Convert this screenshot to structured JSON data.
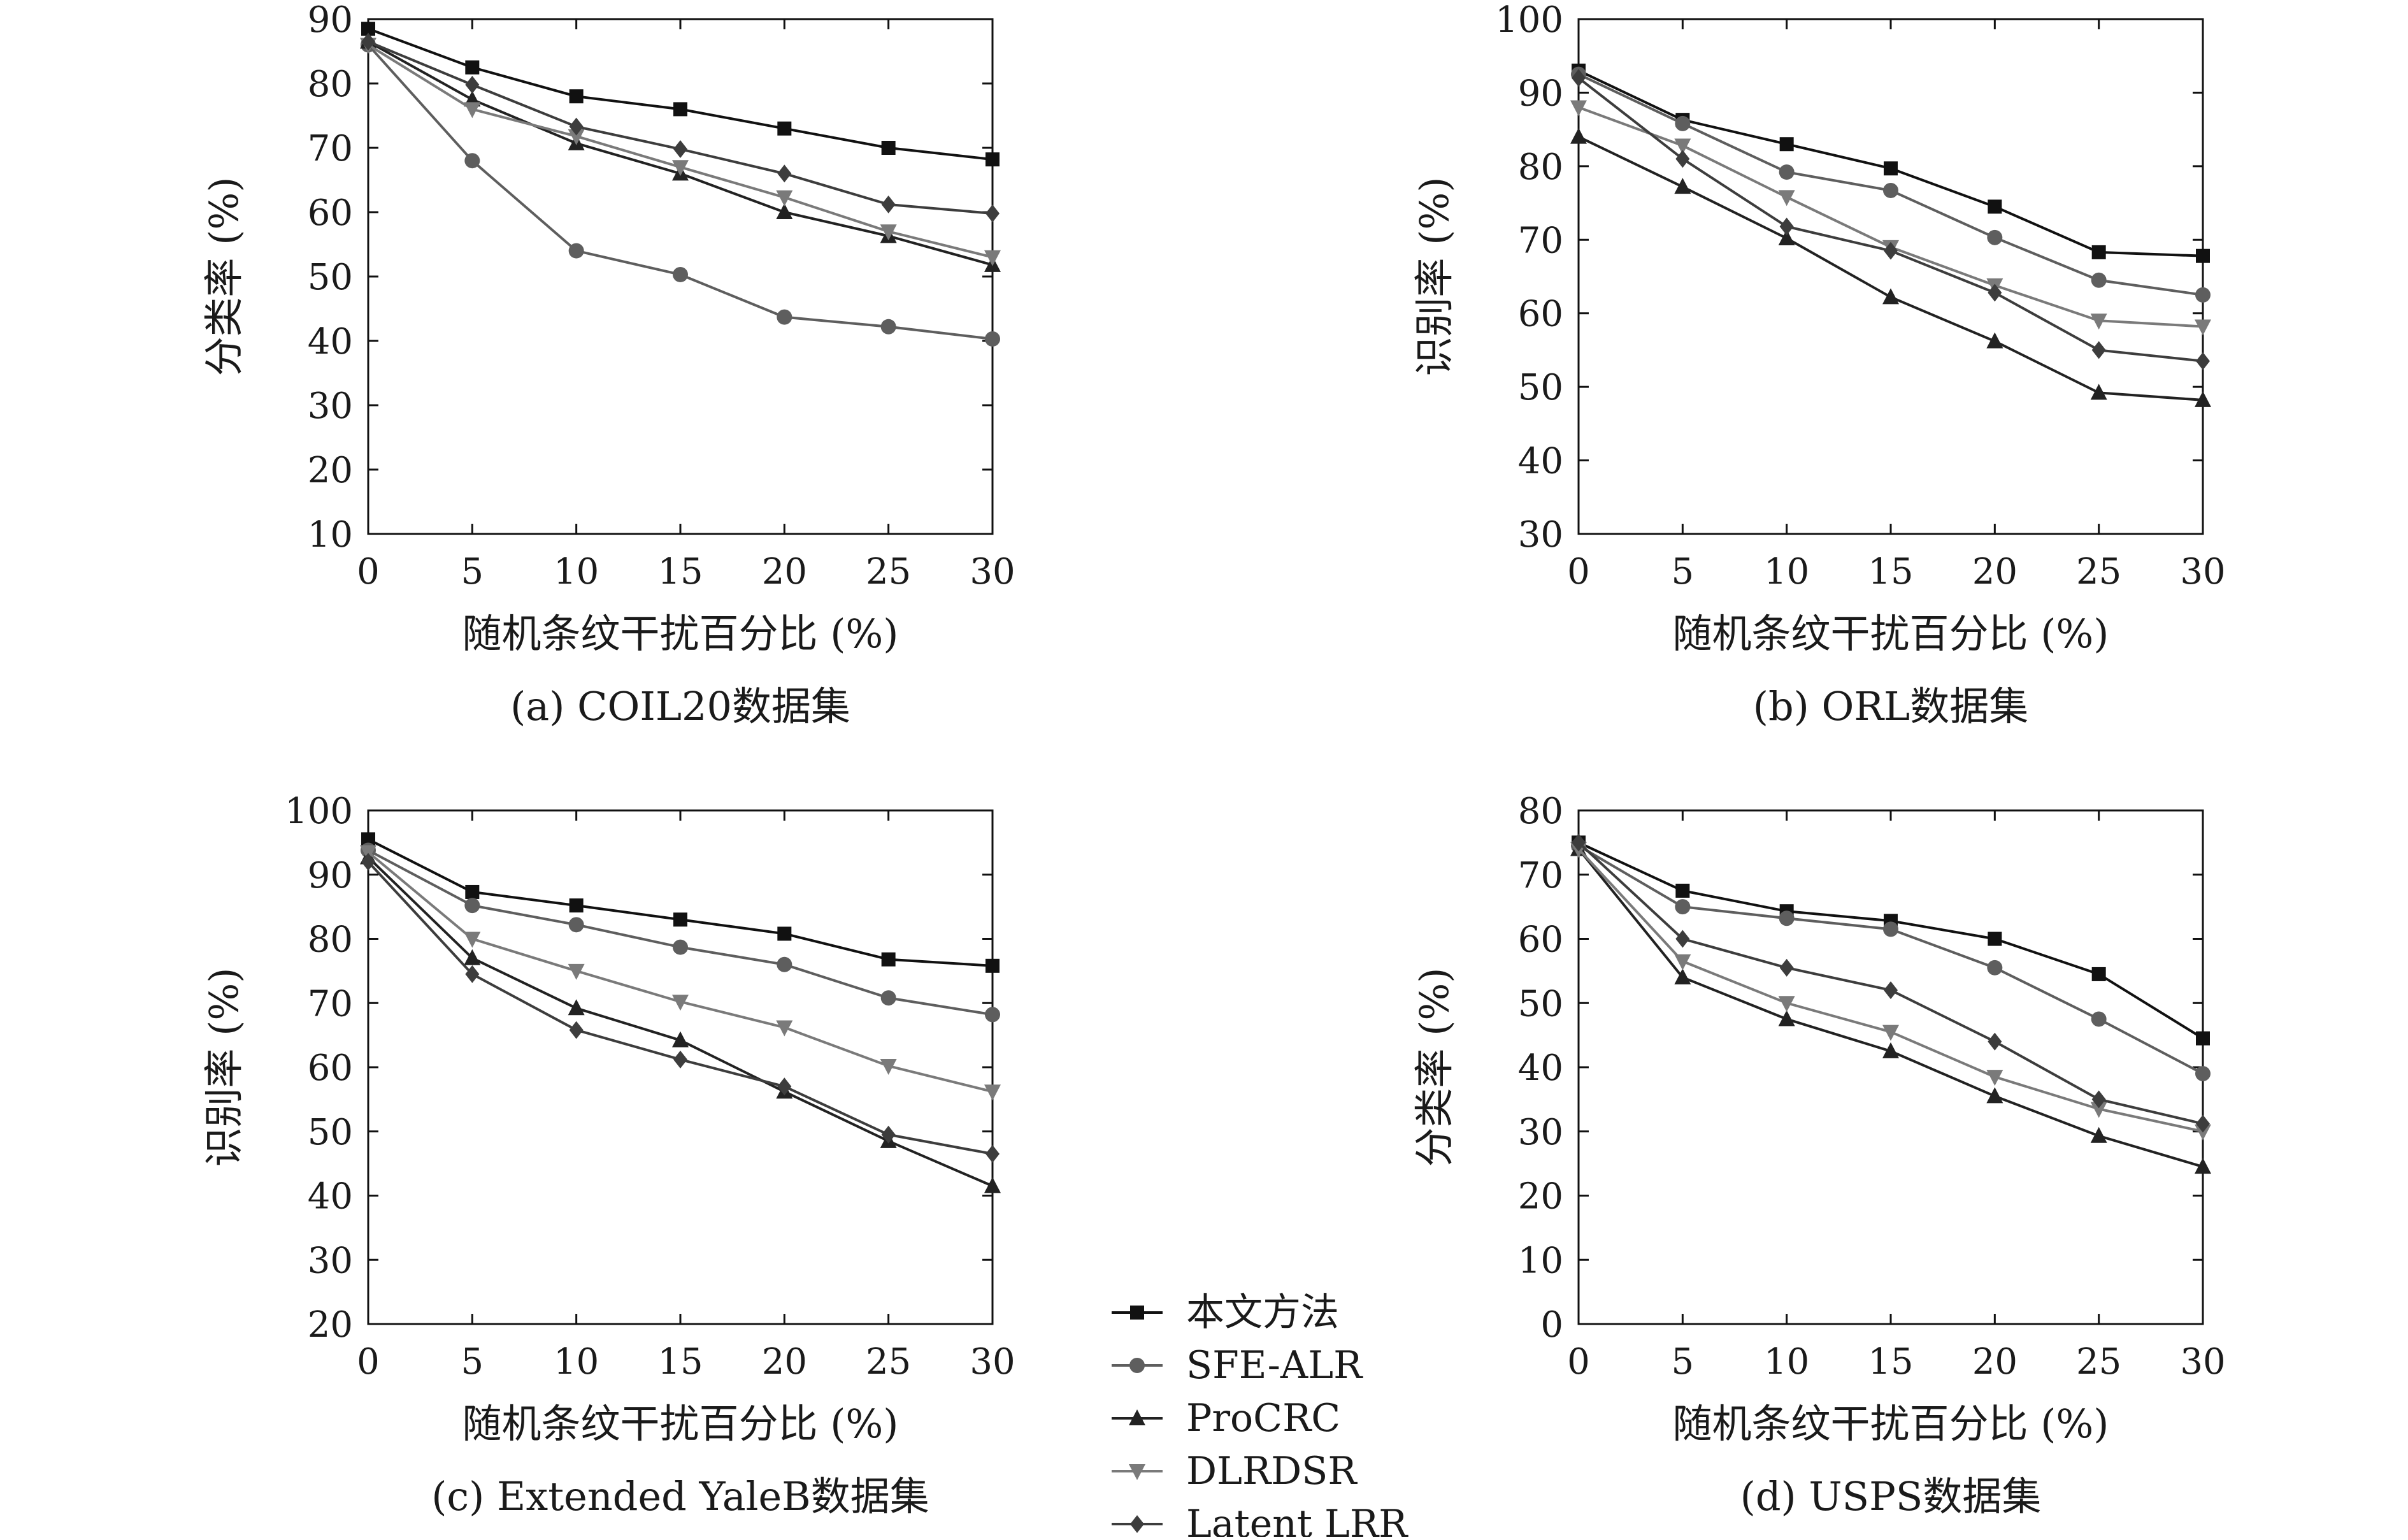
{
  "chart_data": [
    {
      "type": "line",
      "caption": "(a) COIL20数据集",
      "xlabel": "随机条纹干扰百分比 (%)",
      "ylabel": "分类率 (%)",
      "x": [
        0,
        5,
        10,
        15,
        20,
        25,
        30
      ],
      "xlim": [
        0,
        30
      ],
      "ylim": [
        10,
        90
      ],
      "yticks": [
        10,
        20,
        30,
        40,
        50,
        60,
        70,
        80,
        90
      ],
      "series": [
        {
          "name": "本文方法",
          "values": [
            88.5,
            82.5,
            78,
            76,
            73,
            70,
            68.2
          ]
        },
        {
          "name": "SFE-ALR",
          "values": [
            86,
            68,
            54,
            50.3,
            43.7,
            42.2,
            40.3
          ]
        },
        {
          "name": "ProCRC",
          "values": [
            86.5,
            77.5,
            70.7,
            66,
            60,
            56.3,
            51.8
          ]
        },
        {
          "name": "DLRDSR",
          "values": [
            86,
            76,
            71.8,
            67,
            62.3,
            57,
            53
          ]
        },
        {
          "name": "Latent LRR",
          "values": [
            86.5,
            79.8,
            73.3,
            69.8,
            66,
            61.2,
            59.8
          ]
        }
      ]
    },
    {
      "type": "line",
      "caption": "(b) ORL数据集",
      "xlabel": "随机条纹干扰百分比 (%)",
      "ylabel": "识别率 (%)",
      "x": [
        0,
        5,
        10,
        15,
        20,
        25,
        30
      ],
      "xlim": [
        0,
        30
      ],
      "ylim": [
        30,
        100
      ],
      "yticks": [
        30,
        40,
        50,
        60,
        70,
        80,
        90,
        100
      ],
      "series": [
        {
          "name": "本文方法",
          "values": [
            93,
            86.3,
            83,
            79.7,
            74.5,
            68.3,
            67.8
          ]
        },
        {
          "name": "SFE-ALR",
          "values": [
            92.5,
            85.8,
            79.2,
            76.7,
            70.3,
            64.5,
            62.5
          ]
        },
        {
          "name": "ProCRC",
          "values": [
            84,
            77.2,
            70.2,
            62.2,
            56.2,
            49.2,
            48.2
          ]
        },
        {
          "name": "DLRDSR",
          "values": [
            88,
            82.8,
            75.8,
            69,
            63.8,
            59,
            58.2
          ]
        },
        {
          "name": "Latent LRR",
          "values": [
            92,
            81,
            71.8,
            68.5,
            62.8,
            55,
            53.5
          ]
        }
      ]
    },
    {
      "type": "line",
      "caption": "(c) Extended YaleB数据集",
      "xlabel": "随机条纹干扰百分比 (%)",
      "ylabel": "识别率 (%)",
      "x": [
        0,
        5,
        10,
        15,
        20,
        25,
        30
      ],
      "xlim": [
        0,
        30
      ],
      "ylim": [
        20,
        100
      ],
      "yticks": [
        20,
        30,
        40,
        50,
        60,
        70,
        80,
        90,
        100
      ],
      "series": [
        {
          "name": "本文方法",
          "values": [
            95.5,
            87.3,
            85.2,
            83,
            80.8,
            76.8,
            75.8
          ]
        },
        {
          "name": "SFE-ALR",
          "values": [
            93.8,
            85.2,
            82.2,
            78.7,
            76,
            70.8,
            68.2
          ]
        },
        {
          "name": "ProCRC",
          "values": [
            92.7,
            77,
            69.2,
            64.2,
            56.2,
            48.5,
            41.5
          ]
        },
        {
          "name": "DLRDSR",
          "values": [
            93.5,
            80,
            75,
            70.2,
            66.2,
            60.2,
            56.2
          ]
        },
        {
          "name": "Latent LRR",
          "values": [
            92,
            74.5,
            65.8,
            61.2,
            57,
            49.5,
            46.5
          ]
        }
      ]
    },
    {
      "type": "line",
      "caption": "(d) USPS数据集",
      "xlabel": "随机条纹干扰百分比 (%)",
      "ylabel": "分类率 (%)",
      "x": [
        0,
        5,
        10,
        15,
        20,
        25,
        30
      ],
      "xlim": [
        0,
        30
      ],
      "ylim": [
        0,
        80
      ],
      "yticks": [
        0,
        10,
        20,
        30,
        40,
        50,
        60,
        70,
        80
      ],
      "series": [
        {
          "name": "本文方法",
          "values": [
            75,
            67.5,
            64.3,
            62.8,
            60,
            54.5,
            44.5
          ]
        },
        {
          "name": "SFE-ALR",
          "values": [
            74.5,
            65,
            63.2,
            61.5,
            55.5,
            47.5,
            39
          ]
        },
        {
          "name": "ProCRC",
          "values": [
            74,
            54,
            47.5,
            42.5,
            35.5,
            29.3,
            24.5
          ]
        },
        {
          "name": "DLRDSR",
          "values": [
            74,
            56.5,
            50,
            45.5,
            38.5,
            33.5,
            30
          ]
        },
        {
          "name": "Latent LRR",
          "values": [
            75,
            60,
            55.5,
            52,
            44,
            35,
            31.2
          ]
        }
      ]
    }
  ],
  "legend": [
    {
      "name": "本文方法",
      "marker": "square",
      "color": "#111111"
    },
    {
      "name": "SFE-ALR",
      "marker": "circle",
      "color": "#5e5e5e"
    },
    {
      "name": "ProCRC",
      "marker": "triangle-up",
      "color": "#222222"
    },
    {
      "name": "DLRDSR",
      "marker": "triangle-down",
      "color": "#7a7a7a"
    },
    {
      "name": "Latent LRR",
      "marker": "diamond",
      "color": "#3d3d3d"
    }
  ]
}
